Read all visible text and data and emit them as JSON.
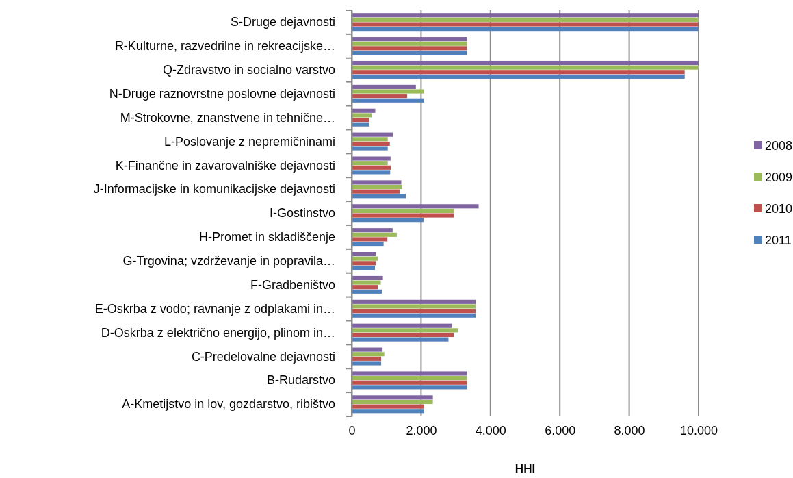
{
  "chart_data": {
    "type": "bar",
    "orientation": "horizontal",
    "xlabel": "HHI",
    "categories": [
      "S-Druge dejavnosti",
      "R-Kulturne, razvedrilne in rekreacijske…",
      "Q-Zdravstvo in socialno varstvo",
      "N-Druge raznovrstne poslovne dejavnosti",
      "M-Strokovne, znanstvene in tehnične…",
      "L-Poslovanje z nepremičninami",
      "K-Finančne in zavarovalniške dejavnosti",
      "J-Informacijske in komunikacijske dejavnosti",
      "I-Gostinstvo",
      "H-Promet in skladiščenje",
      "G-Trgovina; vzdrževanje in popravila…",
      "F-Gradbeništvo",
      "E-Oskrba z vodo; ravnanje z odplakami in…",
      "D-Oskrba z električno energijo, plinom in…",
      "C-Predelovalne dejavnosti",
      "B-Rudarstvo",
      "A-Kmetijstvo in lov, gozdarstvo, ribištvo"
    ],
    "series": [
      {
        "name": "2008",
        "color": "#8064a2",
        "values": [
          10000,
          3330,
          10000,
          1850,
          680,
          1190,
          1120,
          1430,
          3660,
          1180,
          700,
          900,
          3570,
          2900,
          890,
          3330,
          2340
        ]
      },
      {
        "name": "2009",
        "color": "#9bbb59",
        "values": [
          10000,
          3330,
          10000,
          2090,
          580,
          1040,
          1040,
          1450,
          2950,
          1300,
          750,
          840,
          3570,
          3070,
          940,
          3330,
          2340
        ]
      },
      {
        "name": "2010",
        "color": "#c0504d",
        "values": [
          10000,
          3330,
          9600,
          1600,
          510,
          1100,
          1130,
          1380,
          2950,
          1030,
          700,
          750,
          3570,
          2950,
          850,
          3330,
          2090
        ]
      },
      {
        "name": "2011",
        "color": "#4f81bd",
        "values": [
          10000,
          3330,
          9600,
          2090,
          510,
          1040,
          1110,
          1560,
          2070,
          920,
          670,
          870,
          3570,
          2790,
          850,
          3330,
          2090
        ]
      }
    ],
    "xlim": [
      0,
      10000
    ],
    "xticks": [
      {
        "value": 0,
        "label": "0"
      },
      {
        "value": 2000,
        "label": "2.000"
      },
      {
        "value": 4000,
        "label": "4.000"
      },
      {
        "value": 6000,
        "label": "6.000"
      },
      {
        "value": 8000,
        "label": "8.000"
      },
      {
        "value": 10000,
        "label": "10.000"
      }
    ],
    "grid": "x",
    "legend": "right"
  }
}
